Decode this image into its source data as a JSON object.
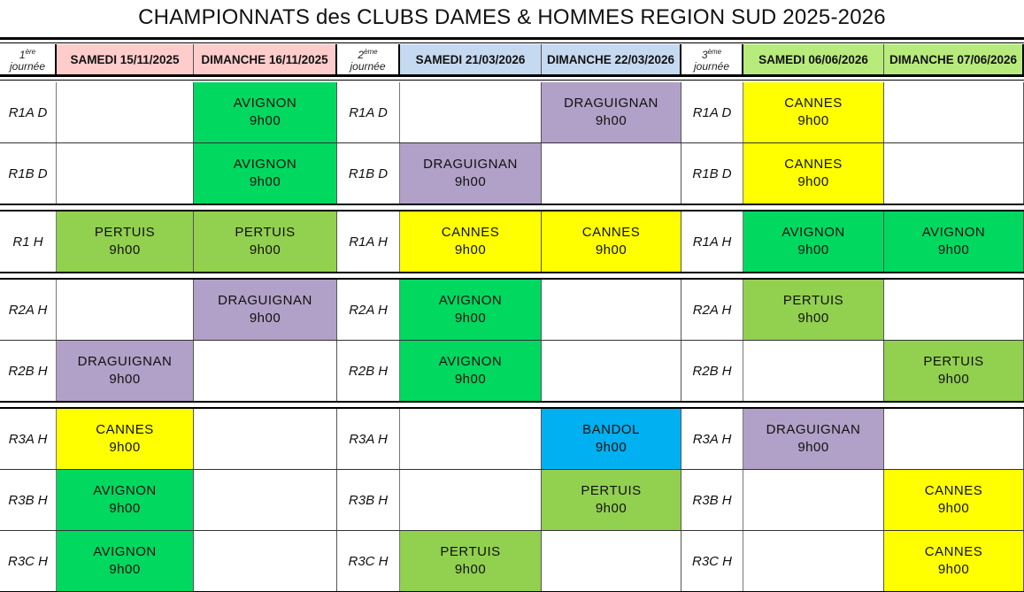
{
  "title": "CHAMPIONNATS des CLUBS DAMES & HOMMES REGION SUD 2025-2026",
  "colors": {
    "AVIGNON": "#00d860",
    "DRAGUIGNAN": "#b1a0c7",
    "CANNES": "#ffff00",
    "PERTUIS": "#92d050",
    "BANDOL": "#00b0f0"
  },
  "journees": [
    {
      "num": "1",
      "sup": "ère",
      "word": "journée",
      "header_color": "#ffcccc",
      "days": [
        "SAMEDI 15/11/2025",
        "DIMANCHE 16/11/2025"
      ]
    },
    {
      "num": "2",
      "sup": "ème",
      "word": "journée",
      "header_color": "#c5d9f1",
      "days": [
        "SAMEDI 21/03/2026",
        "DIMANCHE 22/03/2026"
      ]
    },
    {
      "num": "3",
      "sup": "ème",
      "word": "journée",
      "header_color": "#b7eb7c",
      "days": [
        "SAMEDI 06/06/2026",
        "DIMANCHE 07/06/2026"
      ]
    }
  ],
  "groups": [
    {
      "rows": [
        {
          "labels": [
            "R1A D",
            "R1A D",
            "R1A D"
          ],
          "cells": [
            null,
            {
              "club": "AVIGNON",
              "time": "9h00"
            },
            null,
            {
              "club": "DRAGUIGNAN",
              "time": "9h00"
            },
            {
              "club": "CANNES",
              "time": "9h00"
            },
            null
          ]
        },
        {
          "labels": [
            "R1B D",
            "R1B D",
            "R1B D"
          ],
          "cells": [
            null,
            {
              "club": "AVIGNON",
              "time": "9h00"
            },
            {
              "club": "DRAGUIGNAN",
              "time": "9h00"
            },
            null,
            {
              "club": "CANNES",
              "time": "9h00"
            },
            null
          ]
        }
      ]
    },
    {
      "rows": [
        {
          "labels": [
            "R1 H",
            "R1A H",
            "R1A H"
          ],
          "cells": [
            {
              "club": "PERTUIS",
              "time": "9h00"
            },
            {
              "club": "PERTUIS",
              "time": "9h00"
            },
            {
              "club": "CANNES",
              "time": "9h00"
            },
            {
              "club": "CANNES",
              "time": "9h00"
            },
            {
              "club": "AVIGNON",
              "time": "9h00"
            },
            {
              "club": "AVIGNON",
              "time": "9h00"
            }
          ]
        }
      ]
    },
    {
      "rows": [
        {
          "labels": [
            "R2A H",
            "R2A H",
            "R2A H"
          ],
          "cells": [
            null,
            {
              "club": "DRAGUIGNAN",
              "time": "9h00"
            },
            {
              "club": "AVIGNON",
              "time": "9h00"
            },
            null,
            {
              "club": "PERTUIS",
              "time": "9h00"
            },
            null
          ]
        },
        {
          "labels": [
            "R2B H",
            "R2B H",
            "R2B H"
          ],
          "cells": [
            {
              "club": "DRAGUIGNAN",
              "time": "9h00"
            },
            null,
            {
              "club": "AVIGNON",
              "time": "9h00"
            },
            null,
            null,
            {
              "club": "PERTUIS",
              "time": "9h00"
            }
          ]
        }
      ]
    },
    {
      "rows": [
        {
          "labels": [
            "R3A H",
            "R3A H",
            "R3A H"
          ],
          "cells": [
            {
              "club": "CANNES",
              "time": "9h00"
            },
            null,
            null,
            {
              "club": "BANDOL",
              "time": "9h00"
            },
            {
              "club": "DRAGUIGNAN",
              "time": "9h00"
            },
            null
          ]
        },
        {
          "labels": [
            "R3B H",
            "R3B H",
            "R3B H"
          ],
          "cells": [
            {
              "club": "AVIGNON",
              "time": "9h00"
            },
            null,
            null,
            {
              "club": "PERTUIS",
              "time": "9h00"
            },
            null,
            {
              "club": "CANNES",
              "time": "9h00"
            }
          ]
        },
        {
          "labels": [
            "R3C H",
            "R3C H",
            "R3C H"
          ],
          "cells": [
            {
              "club": "AVIGNON",
              "time": "9h00"
            },
            null,
            {
              "club": "PERTUIS",
              "time": "9h00"
            },
            null,
            null,
            {
              "club": "CANNES",
              "time": "9h00"
            }
          ]
        }
      ]
    }
  ]
}
